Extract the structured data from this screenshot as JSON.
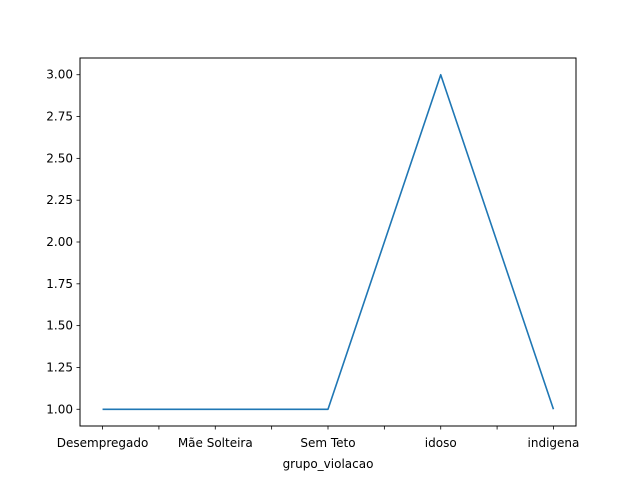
{
  "chart_data": {
    "type": "line",
    "title": "",
    "xlabel": "grupo_violacao",
    "ylabel": "",
    "categories": [
      "Desempregado",
      "Mãe Solteira",
      "Sem Teto",
      "idoso",
      "indigena"
    ],
    "x_positions": [
      0,
      1,
      2,
      3,
      4,
      5,
      6,
      7,
      8
    ],
    "x_tick_labels": [
      {
        "pos": 0,
        "label": "Desempregado"
      },
      {
        "pos": 1,
        "label": ""
      },
      {
        "pos": 2,
        "label": "Mãe Solteira"
      },
      {
        "pos": 3,
        "label": ""
      },
      {
        "pos": 4,
        "label": "Sem Teto"
      },
      {
        "pos": 5,
        "label": ""
      },
      {
        "pos": 6,
        "label": "idoso"
      },
      {
        "pos": 7,
        "label": ""
      },
      {
        "pos": 8,
        "label": "indigena"
      }
    ],
    "series": [
      {
        "color": "#1f77b4",
        "x": [
          0,
          1,
          2,
          3,
          4,
          5,
          6,
          7,
          8
        ],
        "values": [
          1,
          1,
          1,
          1,
          1,
          2,
          3,
          2,
          1
        ]
      }
    ],
    "xlim": [
      -0.4,
      8.4
    ],
    "ylim": [
      0.9,
      3.1
    ],
    "yticks": [
      1.0,
      1.25,
      1.5,
      1.75,
      2.0,
      2.25,
      2.5,
      2.75,
      3.0
    ],
    "ytick_labels": [
      "1.00",
      "1.25",
      "1.50",
      "1.75",
      "2.00",
      "2.25",
      "2.50",
      "2.75",
      "3.00"
    ],
    "grid": false,
    "legend": "none"
  }
}
